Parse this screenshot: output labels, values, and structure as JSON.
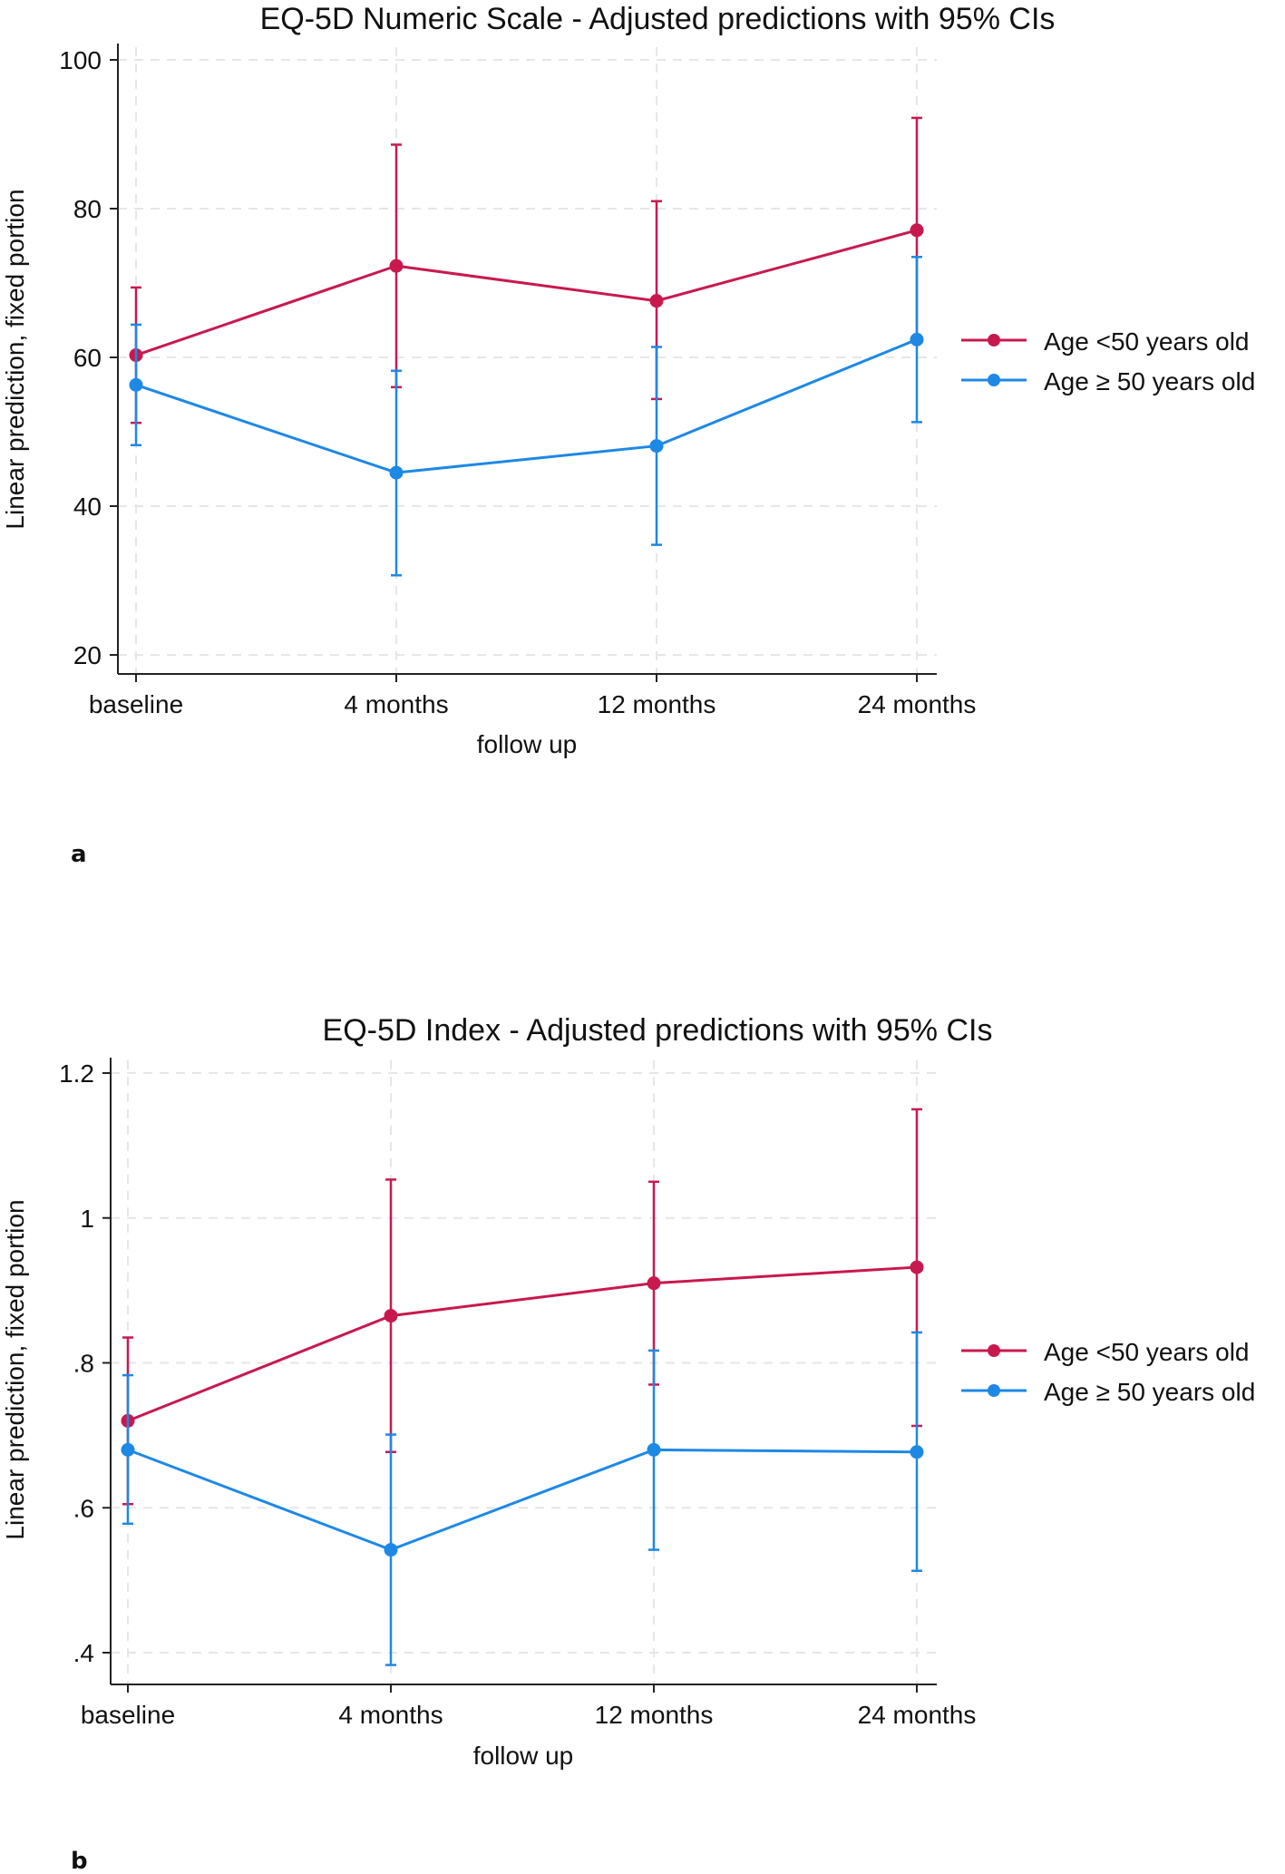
{
  "chart_data": [
    {
      "type": "line",
      "panel_label": "a",
      "title": "EQ-5D Numeric Scale - Adjusted predictions with 95% CIs",
      "xlabel": "follow up",
      "ylabel": "Linear prediction, fixed portion",
      "categories": [
        "baseline",
        "4 months",
        "12 months",
        "24 months"
      ],
      "ylim": [
        20,
        100
      ],
      "yticks": [
        20,
        40,
        60,
        80,
        100
      ],
      "ytick_labels": [
        "20",
        "40",
        "60",
        "80",
        "100"
      ],
      "grid": true,
      "legend_position": "right",
      "series": [
        {
          "name": "Age <50 years old",
          "color": "#c8194f",
          "values": [
            60.3,
            72.3,
            67.6,
            77.1
          ],
          "ci_lower": [
            51.2,
            56.0,
            54.4,
            62.0
          ],
          "ci_upper": [
            69.4,
            88.6,
            81.0,
            92.2
          ]
        },
        {
          "name": "Age ≥ 50 years old",
          "color": "#1e88e5",
          "values": [
            56.3,
            44.5,
            48.1,
            62.4
          ],
          "ci_lower": [
            48.2,
            30.7,
            34.8,
            51.3
          ],
          "ci_upper": [
            64.4,
            58.2,
            61.4,
            73.5
          ]
        }
      ]
    },
    {
      "type": "line",
      "panel_label": "b",
      "title": "EQ-5D Index - Adjusted predictions with 95% CIs",
      "xlabel": "follow up",
      "ylabel": "Linear prediction, fixed portion",
      "categories": [
        "baseline",
        "4 months",
        "12 months",
        "24 months"
      ],
      "ylim": [
        0.4,
        1.2
      ],
      "yticks": [
        0.4,
        0.6,
        0.8,
        1.0,
        1.2
      ],
      "ytick_labels": [
        ".4",
        ".6",
        ".8",
        "1",
        "1.2"
      ],
      "grid": true,
      "legend_position": "right",
      "series": [
        {
          "name": "Age <50 years old",
          "color": "#c8194f",
          "values": [
            0.72,
            0.865,
            0.91,
            0.932
          ],
          "ci_lower": [
            0.605,
            0.677,
            0.77,
            0.713
          ],
          "ci_upper": [
            0.835,
            1.053,
            1.05,
            1.15
          ]
        },
        {
          "name": "Age ≥ 50 years old",
          "color": "#1e88e5",
          "values": [
            0.68,
            0.542,
            0.68,
            0.677
          ],
          "ci_lower": [
            0.578,
            0.383,
            0.542,
            0.513
          ],
          "ci_upper": [
            0.783,
            0.701,
            0.817,
            0.842
          ]
        }
      ]
    }
  ]
}
